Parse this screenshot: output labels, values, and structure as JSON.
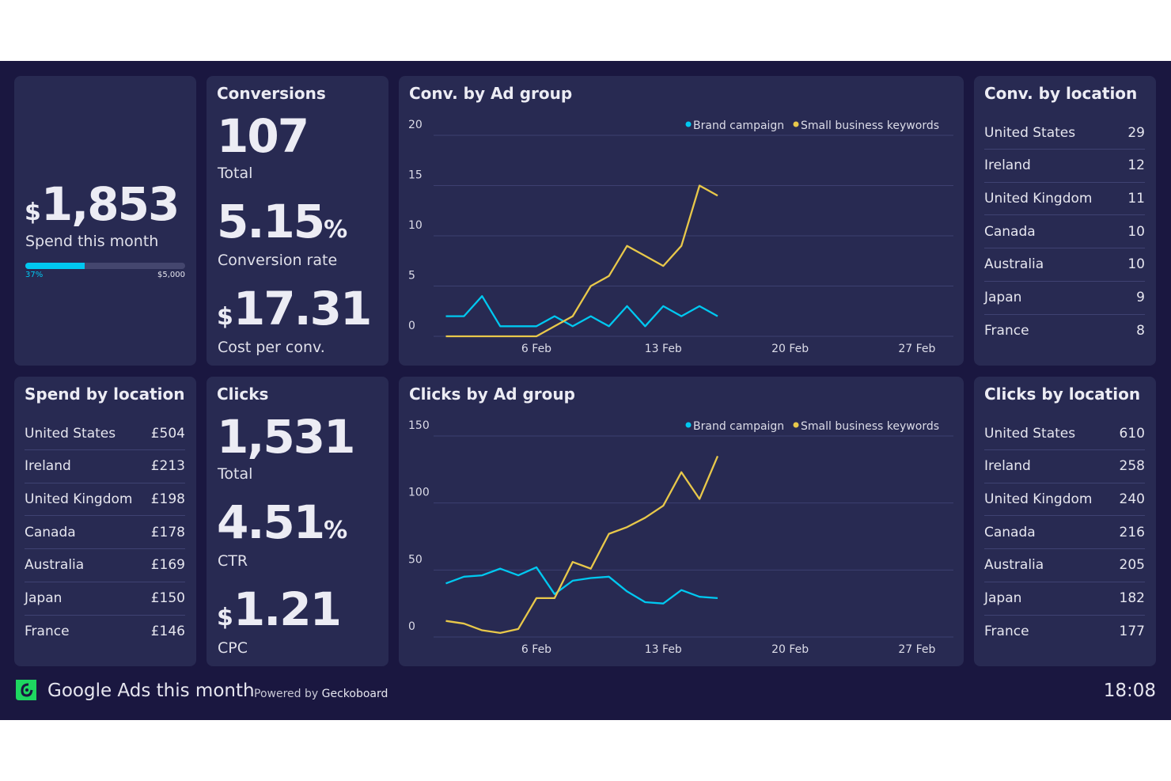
{
  "colors": {
    "background": "#1a1740",
    "panel": "#282a52",
    "brand": "#00c8f0",
    "small_business": "#e8c84a",
    "logo": "#1ed760"
  },
  "spend": {
    "value": "1,853",
    "currency": "$",
    "label": "Spend this month",
    "progress_percent": 37,
    "progress_label": "37%",
    "goal": "$5,000"
  },
  "conversions": {
    "title": "Conversions",
    "total": "107",
    "total_label": "Total",
    "rate": "5.15",
    "rate_unit": "%",
    "rate_label": "Conversion rate",
    "cost": "17.31",
    "cost_currency": "$",
    "cost_label": "Cost per conv."
  },
  "clicks": {
    "title": "Clicks",
    "total": "1,531",
    "total_label": "Total",
    "ctr": "4.51",
    "ctr_unit": "%",
    "ctr_label": "CTR",
    "cpc": "1.21",
    "cpc_currency": "$",
    "cpc_label": "CPC"
  },
  "conv_location": {
    "title": "Conv. by location",
    "rows": [
      [
        "United States",
        "29"
      ],
      [
        "Ireland",
        "12"
      ],
      [
        "United Kingdom",
        "11"
      ],
      [
        "Canada",
        "10"
      ],
      [
        "Australia",
        "10"
      ],
      [
        "Japan",
        "9"
      ],
      [
        "France",
        "8"
      ]
    ]
  },
  "spend_location": {
    "title": "Spend by location",
    "rows": [
      [
        "United States",
        "£504"
      ],
      [
        "Ireland",
        "£213"
      ],
      [
        "United Kingdom",
        "£198"
      ],
      [
        "Canada",
        "£178"
      ],
      [
        "Australia",
        "£169"
      ],
      [
        "Japan",
        "£150"
      ],
      [
        "France",
        "£146"
      ]
    ]
  },
  "clicks_location": {
    "title": "Clicks by location",
    "rows": [
      [
        "United States",
        "610"
      ],
      [
        "Ireland",
        "258"
      ],
      [
        "United Kingdom",
        "240"
      ],
      [
        "Canada",
        "216"
      ],
      [
        "Australia",
        "205"
      ],
      [
        "Japan",
        "182"
      ],
      [
        "France",
        "177"
      ]
    ]
  },
  "chart_data": [
    {
      "type": "line",
      "title": "Conv. by Ad group",
      "x_range": [
        "1 Feb",
        "28 Feb"
      ],
      "x_ticks": [
        "6 Feb",
        "13 Feb",
        "20 Feb",
        "27 Feb"
      ],
      "y_ticks": [
        0,
        5,
        10,
        15,
        20
      ],
      "ylim": [
        0,
        20
      ],
      "grid": true,
      "legend": "top-right",
      "x": [
        "1 Feb",
        "2 Feb",
        "3 Feb",
        "4 Feb",
        "5 Feb",
        "6 Feb",
        "7 Feb",
        "8 Feb",
        "9 Feb",
        "10 Feb",
        "11 Feb",
        "12 Feb",
        "13 Feb",
        "14 Feb",
        "15 Feb",
        "16 Feb"
      ],
      "series": [
        {
          "name": "Brand campaign",
          "color": "#00c8f0",
          "values": [
            2,
            2,
            4,
            1,
            1,
            1,
            2,
            1,
            2,
            1,
            3,
            1,
            3,
            2,
            3,
            2
          ]
        },
        {
          "name": "Small business keywords",
          "color": "#e8c84a",
          "values": [
            0,
            0,
            0,
            0,
            0,
            0,
            1,
            2,
            5,
            6,
            9,
            8,
            7,
            9,
            15,
            14
          ]
        }
      ]
    },
    {
      "type": "line",
      "title": "Clicks by Ad group",
      "x_range": [
        "1 Feb",
        "28 Feb"
      ],
      "x_ticks": [
        "6 Feb",
        "13 Feb",
        "20 Feb",
        "27 Feb"
      ],
      "y_ticks": [
        0,
        50,
        100,
        150
      ],
      "ylim": [
        0,
        150
      ],
      "grid": true,
      "legend": "top-right",
      "x": [
        "1 Feb",
        "2 Feb",
        "3 Feb",
        "4 Feb",
        "5 Feb",
        "6 Feb",
        "7 Feb",
        "8 Feb",
        "9 Feb",
        "10 Feb",
        "11 Feb",
        "12 Feb",
        "13 Feb",
        "14 Feb",
        "15 Feb",
        "16 Feb"
      ],
      "series": [
        {
          "name": "Brand campaign",
          "color": "#00c8f0",
          "values": [
            40,
            45,
            46,
            51,
            46,
            52,
            32,
            42,
            44,
            45,
            34,
            26,
            25,
            35,
            30,
            29
          ]
        },
        {
          "name": "Small business keywords",
          "color": "#e8c84a",
          "values": [
            12,
            10,
            5,
            3,
            6,
            29,
            29,
            56,
            51,
            77,
            82,
            89,
            98,
            123,
            103,
            135
          ]
        }
      ]
    }
  ],
  "footer": {
    "title": "Google Ads this month",
    "powered_prefix": "Powered by",
    "powered_brand": "Geckoboard",
    "time": "18:08"
  }
}
